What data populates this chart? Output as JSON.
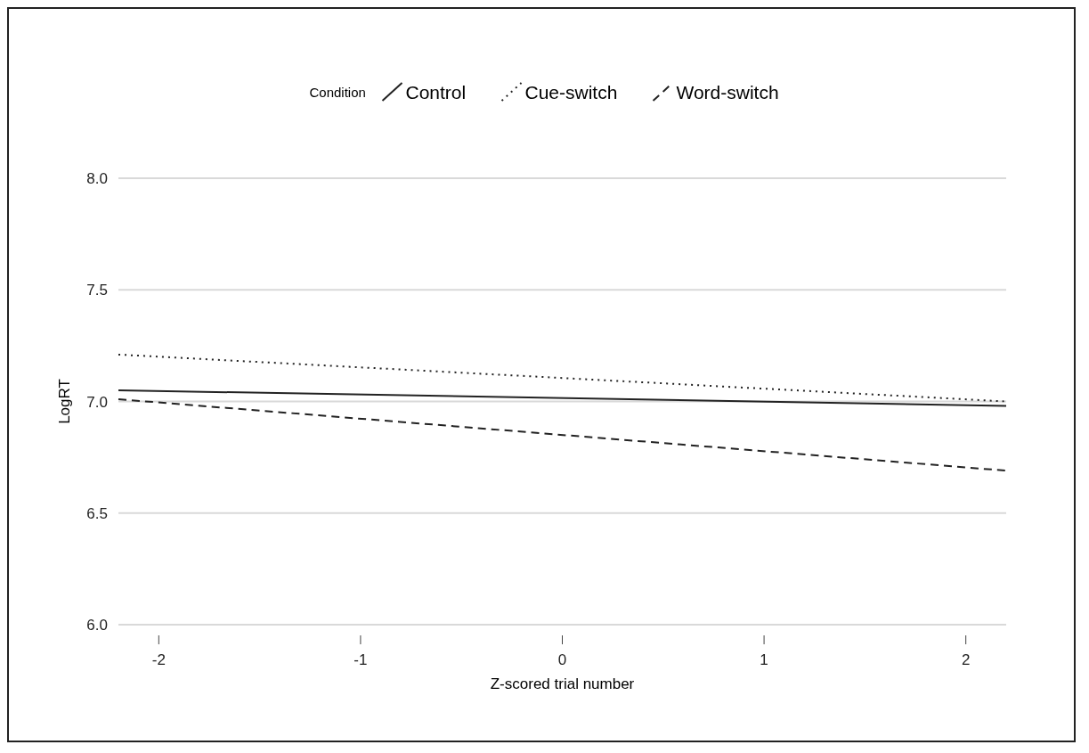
{
  "chart_data": {
    "type": "line",
    "xlabel": "Z-scored trial number",
    "ylabel": "LogRT",
    "legend_title": "Condition",
    "legend": "top",
    "grid": "y",
    "x": [
      -2.2,
      2.2
    ],
    "xlim": [
      -2.2,
      2.2
    ],
    "xticks": [
      -2,
      -1,
      0,
      1,
      2
    ],
    "ylim": [
      6,
      8
    ],
    "yticks": [
      {
        "value": 6,
        "label": "6.0"
      },
      {
        "value": 6.5,
        "label": "6.5"
      },
      {
        "value": 7,
        "label": "7.0"
      },
      {
        "value": 7.5,
        "label": "7.5"
      },
      {
        "value": 8,
        "label": "8.0"
      }
    ],
    "series": [
      {
        "name": "Control",
        "color": "#222222",
        "line_style": "solid",
        "values": [
          7.05,
          6.98
        ]
      },
      {
        "name": "Cue-switch",
        "color": "#222222",
        "line_style": "dotted",
        "values": [
          7.21,
          7.0
        ]
      },
      {
        "name": "Word-switch",
        "color": "#222222",
        "line_style": "dashed",
        "values": [
          7.01,
          6.69
        ]
      }
    ]
  }
}
